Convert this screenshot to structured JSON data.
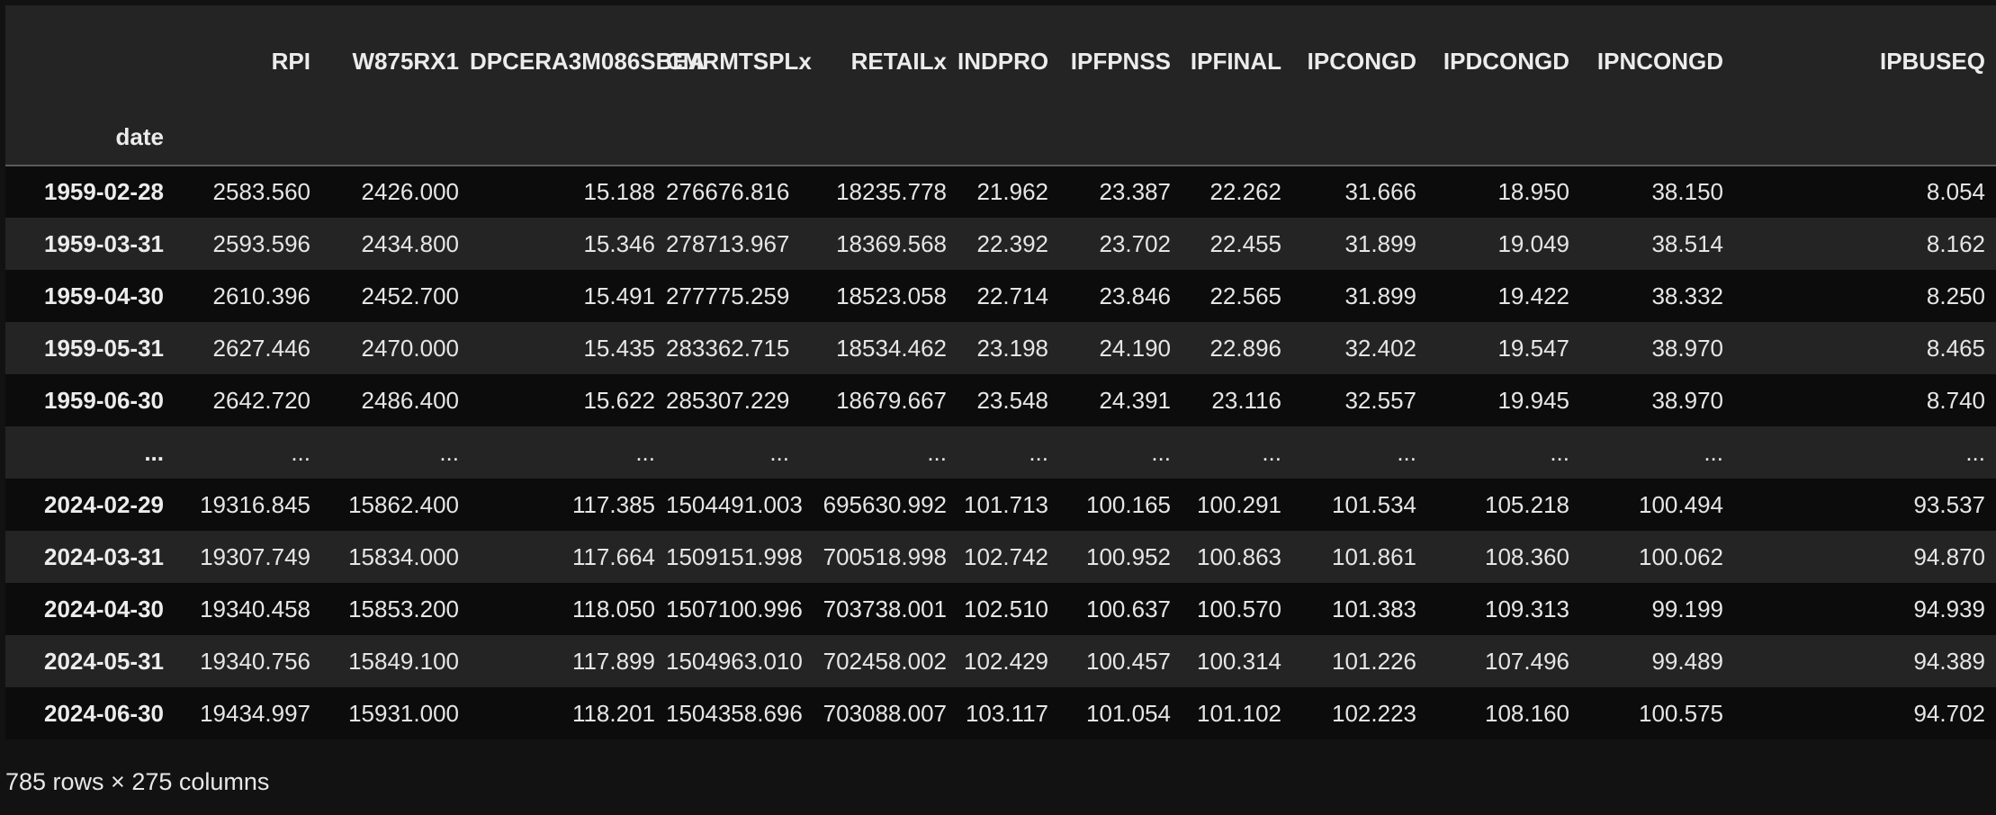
{
  "table": {
    "index_name": "date",
    "columns": [
      "RPI",
      "W875RX1",
      "DPCERA3M086SBEA",
      "CMRMTSPLx",
      "RETAILx",
      "INDPRO",
      "IPFPNSS",
      "IPFINAL",
      "IPCONGD",
      "IPDCONGD",
      "IPNCONGD",
      "IPBUSEQ"
    ],
    "rows": [
      {
        "index": "1959-02-28",
        "cells": [
          "2583.560",
          "2426.000",
          "15.188",
          "276676.816",
          "18235.778",
          "21.962",
          "23.387",
          "22.262",
          "31.666",
          "18.950",
          "38.150",
          "8.054"
        ]
      },
      {
        "index": "1959-03-31",
        "cells": [
          "2593.596",
          "2434.800",
          "15.346",
          "278713.967",
          "18369.568",
          "22.392",
          "23.702",
          "22.455",
          "31.899",
          "19.049",
          "38.514",
          "8.162"
        ]
      },
      {
        "index": "1959-04-30",
        "cells": [
          "2610.396",
          "2452.700",
          "15.491",
          "277775.259",
          "18523.058",
          "22.714",
          "23.846",
          "22.565",
          "31.899",
          "19.422",
          "38.332",
          "8.250"
        ]
      },
      {
        "index": "1959-05-31",
        "cells": [
          "2627.446",
          "2470.000",
          "15.435",
          "283362.715",
          "18534.462",
          "23.198",
          "24.190",
          "22.896",
          "32.402",
          "19.547",
          "38.970",
          "8.465"
        ]
      },
      {
        "index": "1959-06-30",
        "cells": [
          "2642.720",
          "2486.400",
          "15.622",
          "285307.229",
          "18679.667",
          "23.548",
          "24.391",
          "23.116",
          "32.557",
          "19.945",
          "38.970",
          "8.740"
        ]
      },
      {
        "index": "...",
        "cells": [
          "...",
          "...",
          "...",
          "...",
          "...",
          "...",
          "...",
          "...",
          "...",
          "...",
          "...",
          "..."
        ]
      },
      {
        "index": "2024-02-29",
        "cells": [
          "19316.845",
          "15862.400",
          "117.385",
          "1504491.003",
          "695630.992",
          "101.713",
          "100.165",
          "100.291",
          "101.534",
          "105.218",
          "100.494",
          "93.537"
        ]
      },
      {
        "index": "2024-03-31",
        "cells": [
          "19307.749",
          "15834.000",
          "117.664",
          "1509151.998",
          "700518.998",
          "102.742",
          "100.952",
          "100.863",
          "101.861",
          "108.360",
          "100.062",
          "94.870"
        ]
      },
      {
        "index": "2024-04-30",
        "cells": [
          "19340.458",
          "15853.200",
          "118.050",
          "1507100.996",
          "703738.001",
          "102.510",
          "100.637",
          "100.570",
          "101.383",
          "109.313",
          "99.199",
          "94.939"
        ]
      },
      {
        "index": "2024-05-31",
        "cells": [
          "19340.756",
          "15849.100",
          "117.899",
          "1504963.010",
          "702458.002",
          "102.429",
          "100.457",
          "100.314",
          "101.226",
          "107.496",
          "99.489",
          "94.389"
        ]
      },
      {
        "index": "2024-06-30",
        "cells": [
          "19434.997",
          "15931.000",
          "118.201",
          "1504358.696",
          "703088.007",
          "103.117",
          "101.054",
          "101.102",
          "102.223",
          "108.160",
          "100.575",
          "94.702"
        ]
      }
    ]
  },
  "shape_note": "785 rows × 275 columns"
}
